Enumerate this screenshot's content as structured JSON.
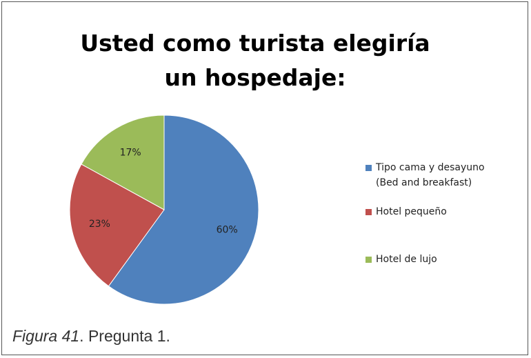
{
  "chart_data": {
    "type": "pie",
    "title": "Usted como turista elegiría un hospedaje:",
    "categories": [
      "Tipo cama y desayuno (Bed and breakfast)",
      "Hotel pequeño",
      "Hotel de lujo"
    ],
    "values": [
      60,
      23,
      17
    ],
    "value_labels": [
      "60%",
      "23%",
      "17%"
    ],
    "colors": [
      "#4f81bd",
      "#c0504d",
      "#9bbb59"
    ],
    "legend": "right"
  },
  "caption": [
    "Figura 41",
    ". Pregunta 1."
  ]
}
